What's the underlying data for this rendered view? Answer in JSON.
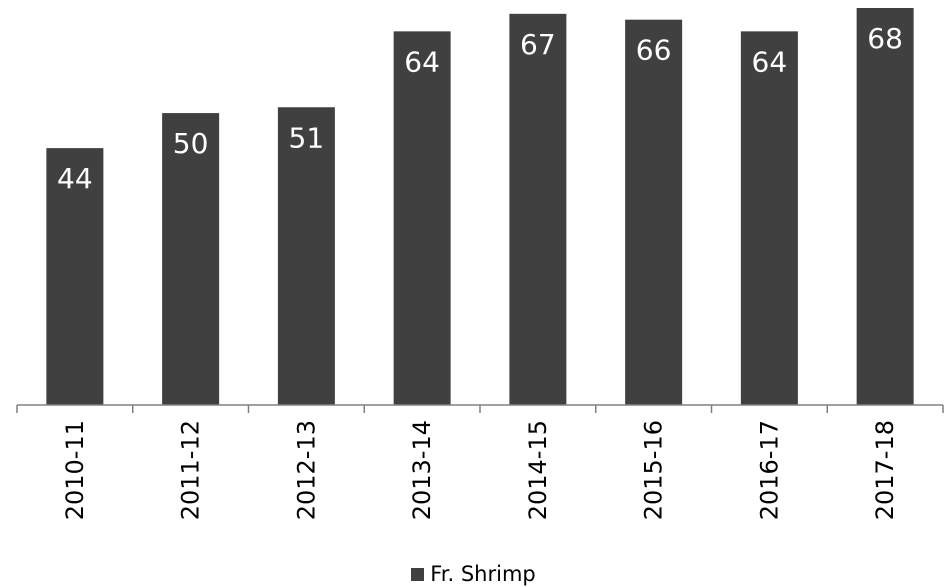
{
  "chart_data": {
    "type": "bar",
    "title": "",
    "xlabel": "",
    "ylabel": "",
    "categories": [
      "2010-11",
      "2011-12",
      "2012-13",
      "2013-14",
      "2014-15",
      "2015-16",
      "2016-17",
      "2017-18"
    ],
    "series": [
      {
        "name": "Fr. Shrimp",
        "values": [
          44,
          50,
          51,
          64,
          67,
          66,
          64,
          68
        ]
      }
    ],
    "ylim": [
      0,
      68
    ],
    "grid": false,
    "legend_position": "bottom",
    "data_labels": true,
    "colors": {
      "bar": "#404040",
      "axis": "#808080",
      "value_label": "#ffffff"
    }
  }
}
